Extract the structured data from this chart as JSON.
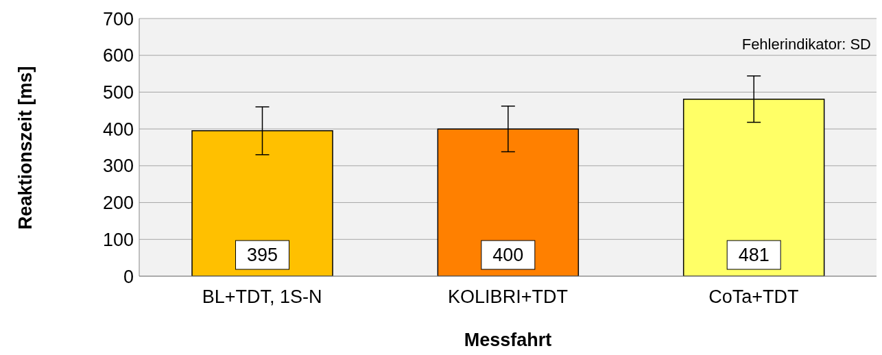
{
  "chart_data": {
    "type": "bar",
    "xlabel": "Messfahrt",
    "ylabel": "Reaktionszeit [ms]",
    "categories": [
      "BL+TDT, 1S-N",
      "KOLIBRI+TDT",
      "CoTa+TDT"
    ],
    "values": [
      395,
      400,
      481
    ],
    "colors": [
      "#ffc000",
      "#ff8000",
      "#ffff66"
    ],
    "errors": [
      65,
      62,
      63
    ],
    "ylim": [
      0,
      700
    ],
    "yticks": [
      0,
      100,
      200,
      300,
      400,
      500,
      600,
      700
    ],
    "grid": "y",
    "data_labels": true,
    "annotations": [
      "Fehlerindikator: SD"
    ]
  }
}
